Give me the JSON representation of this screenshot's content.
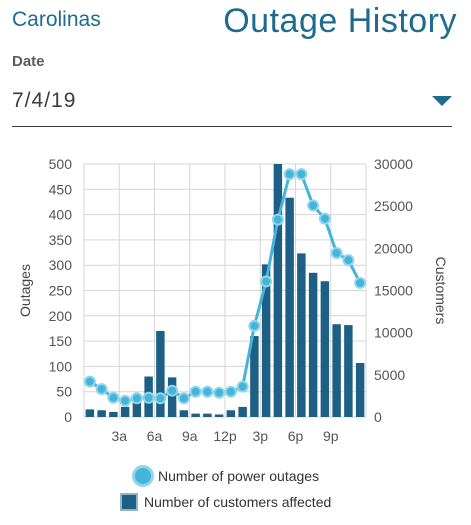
{
  "header": {
    "region": "Carolinas",
    "title": "Outage History"
  },
  "date": {
    "label": "Date",
    "value": "7/4/19"
  },
  "legend": {
    "outages": "Number of power outages",
    "customers": "Number of customers affected"
  },
  "colors": {
    "accent": "#1f6a8f",
    "bar": "#1e5f86",
    "line": "#45b4d8"
  },
  "chart_data": {
    "type": "bar",
    "title": "",
    "ylabel": "Outages",
    "y2label": "Customers",
    "ylim": [
      0,
      500
    ],
    "y2lim": [
      0,
      30000
    ],
    "yticks": [
      0,
      50,
      100,
      150,
      200,
      250,
      300,
      350,
      400,
      450,
      500
    ],
    "y2ticks": [
      0,
      5000,
      10000,
      15000,
      20000,
      25000,
      30000
    ],
    "xticks": [
      {
        "hour": 3,
        "label": "3a"
      },
      {
        "hour": 6,
        "label": "6a"
      },
      {
        "hour": 9,
        "label": "9a"
      },
      {
        "hour": 12,
        "label": "12p"
      },
      {
        "hour": 15,
        "label": "3p"
      },
      {
        "hour": 18,
        "label": "6p"
      },
      {
        "hour": 21,
        "label": "9p"
      }
    ],
    "grid": true,
    "series": [
      {
        "name": "Number of customers affected",
        "type": "bar",
        "axis": "right",
        "x": [
          1,
          2,
          3,
          4,
          5,
          6,
          7,
          8,
          9,
          10,
          11,
          12,
          13,
          14,
          15,
          16,
          17,
          18,
          19,
          20,
          21,
          22,
          23,
          24
        ],
        "values": [
          900,
          800,
          600,
          1200,
          1800,
          4800,
          10200,
          4700,
          800,
          400,
          400,
          300,
          800,
          1200,
          9600,
          18100,
          30000,
          26000,
          19400,
          17100,
          16100,
          11000,
          10900,
          6400
        ]
      },
      {
        "name": "Number of power outages",
        "type": "line",
        "axis": "left",
        "x": [
          1,
          2,
          3,
          4,
          5,
          6,
          7,
          8,
          9,
          10,
          11,
          12,
          13,
          14,
          15,
          16,
          17,
          18,
          19,
          20,
          21,
          22,
          23,
          24
        ],
        "values": [
          70,
          55,
          38,
          32,
          37,
          38,
          37,
          52,
          37,
          50,
          50,
          48,
          50,
          60,
          180,
          268,
          390,
          480,
          480,
          418,
          392,
          324,
          310,
          265
        ]
      }
    ]
  }
}
